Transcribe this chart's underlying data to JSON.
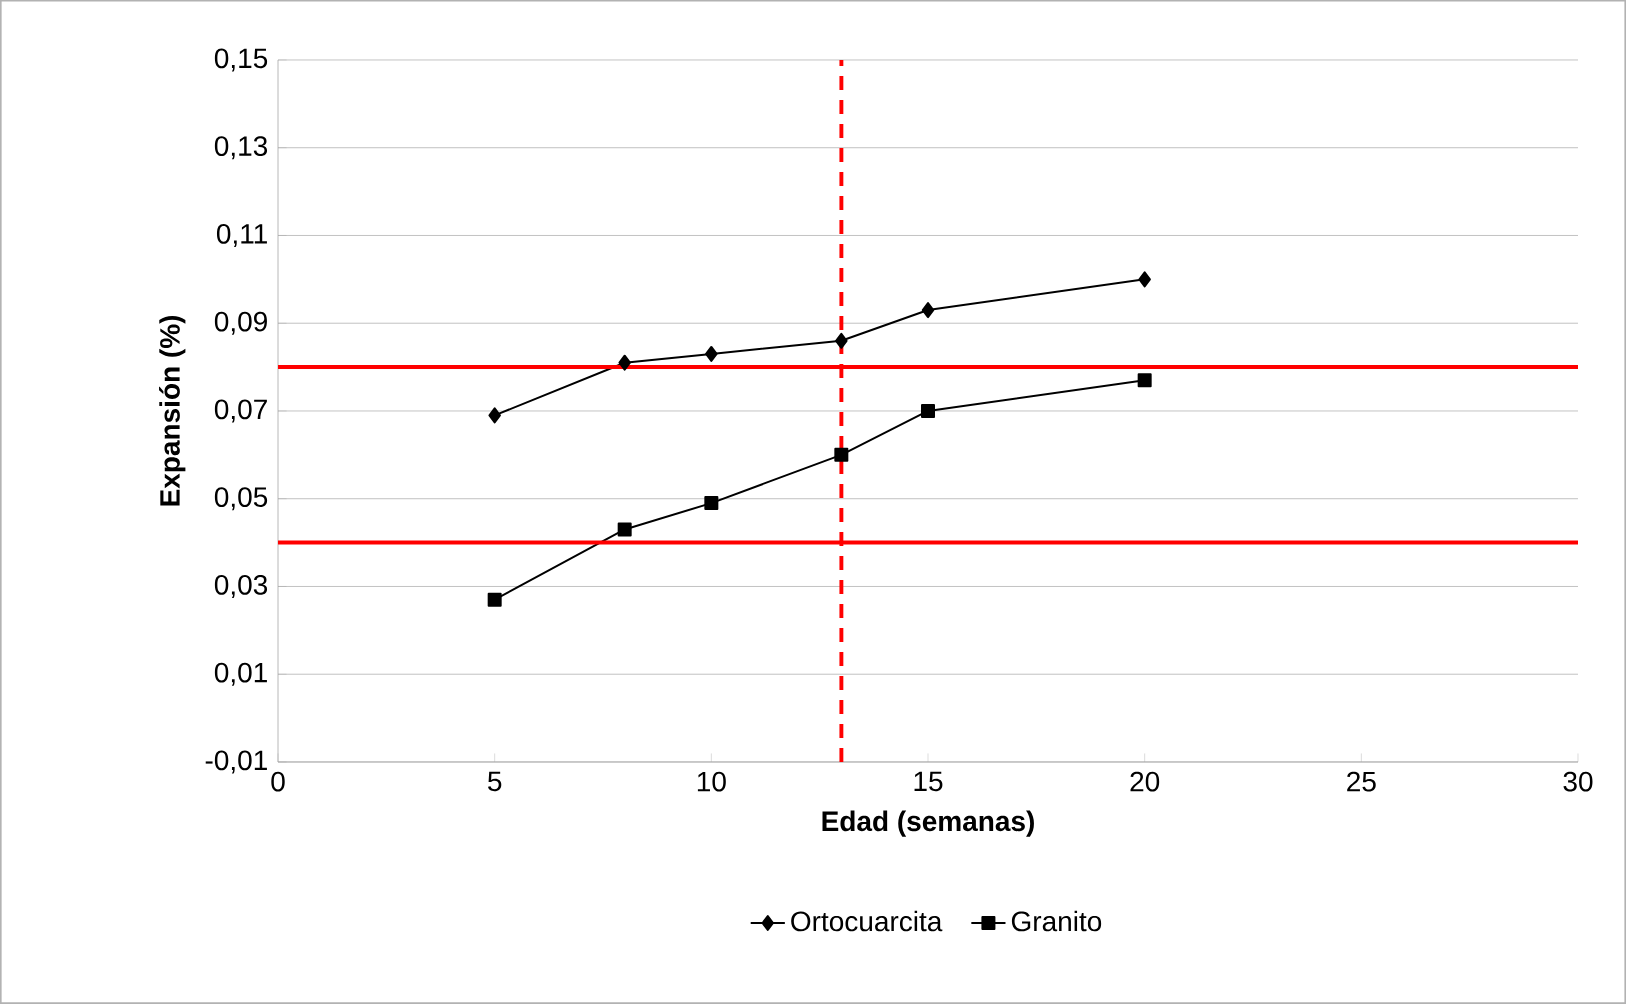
{
  "chart_data": {
    "type": "line",
    "xlabel": "Edad (semanas)",
    "ylabel": "Expansión (%)",
    "x": [
      5,
      8,
      10,
      13,
      15,
      20
    ],
    "series": [
      {
        "name": "Ortocuarcita",
        "color": "#000000",
        "marker": "diamond",
        "values": [
          0.069,
          0.081,
          0.083,
          0.086,
          0.093,
          0.1
        ]
      },
      {
        "name": "Granito",
        "color": "#000000",
        "marker": "square",
        "values": [
          0.027,
          0.043,
          0.049,
          0.06,
          0.07,
          0.077
        ]
      }
    ],
    "xlim": [
      0,
      30
    ],
    "xticks": [
      0,
      5,
      10,
      15,
      20,
      25,
      30
    ],
    "ylim": [
      -0.01,
      0.15
    ],
    "yticks": [
      {
        "value": -0.01,
        "label": "-0,01"
      },
      {
        "value": 0.01,
        "label": "0,01"
      },
      {
        "value": 0.03,
        "label": "0,03"
      },
      {
        "value": 0.05,
        "label": "0,05"
      },
      {
        "value": 0.07,
        "label": "0,07"
      },
      {
        "value": 0.09,
        "label": "0,09"
      },
      {
        "value": 0.11,
        "label": "0,11"
      },
      {
        "value": 0.13,
        "label": "0,13"
      },
      {
        "value": 0.15,
        "label": "0,15"
      }
    ],
    "ref_lines": [
      {
        "axis": "y",
        "value": 0.08,
        "color": "#ff0000",
        "line_style": "solid"
      },
      {
        "axis": "y",
        "value": 0.04,
        "color": "#ff0000",
        "line_style": "solid"
      },
      {
        "axis": "x",
        "value": 13,
        "color": "#ff0000",
        "line_style": "dashed"
      }
    ],
    "grid": "y",
    "legend": "bottom",
    "line_style": "solid"
  }
}
